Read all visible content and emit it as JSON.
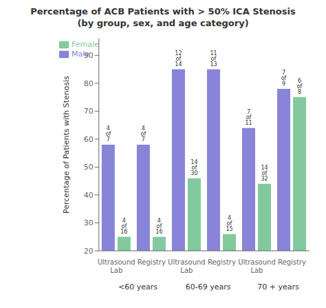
{
  "chart_data": {
    "type": "bar",
    "title": "Percentage of ACB Patients with > 50% ICA Stenosis\n(by group, sex, and age category)",
    "ylabel": "Percentage of Patients with Stenosis",
    "categories": [
      "Ultrasound\nLab",
      "Registry",
      "Ultrasound\nLab",
      "Registry",
      "Ultrasound\nLab",
      "Registry"
    ],
    "groups": [
      "<60 years",
      "60-69 years",
      "70 + years"
    ],
    "series": [
      {
        "name": "Male",
        "color": "#8884d8",
        "values": [
          58,
          58,
          85,
          85,
          64,
          78
        ],
        "value_labels": [
          "4 of 7",
          "4 of 7",
          "12 of 14",
          "11 of 13",
          "7 of 11",
          "7 of 9"
        ]
      },
      {
        "name": "Female",
        "color": "#82ca9d",
        "values": [
          25,
          25,
          46,
          26,
          44,
          75
        ],
        "value_labels": [
          "4 of 16",
          "4 of 16",
          "14 of 30",
          "4 of 15",
          "14 of 32",
          "6 of 8"
        ]
      }
    ],
    "ylim": [
      20,
      96
    ],
    "yticks": [
      20,
      30,
      40,
      50,
      60,
      70,
      80,
      90
    ],
    "legend": "upper left",
    "grid": false
  }
}
